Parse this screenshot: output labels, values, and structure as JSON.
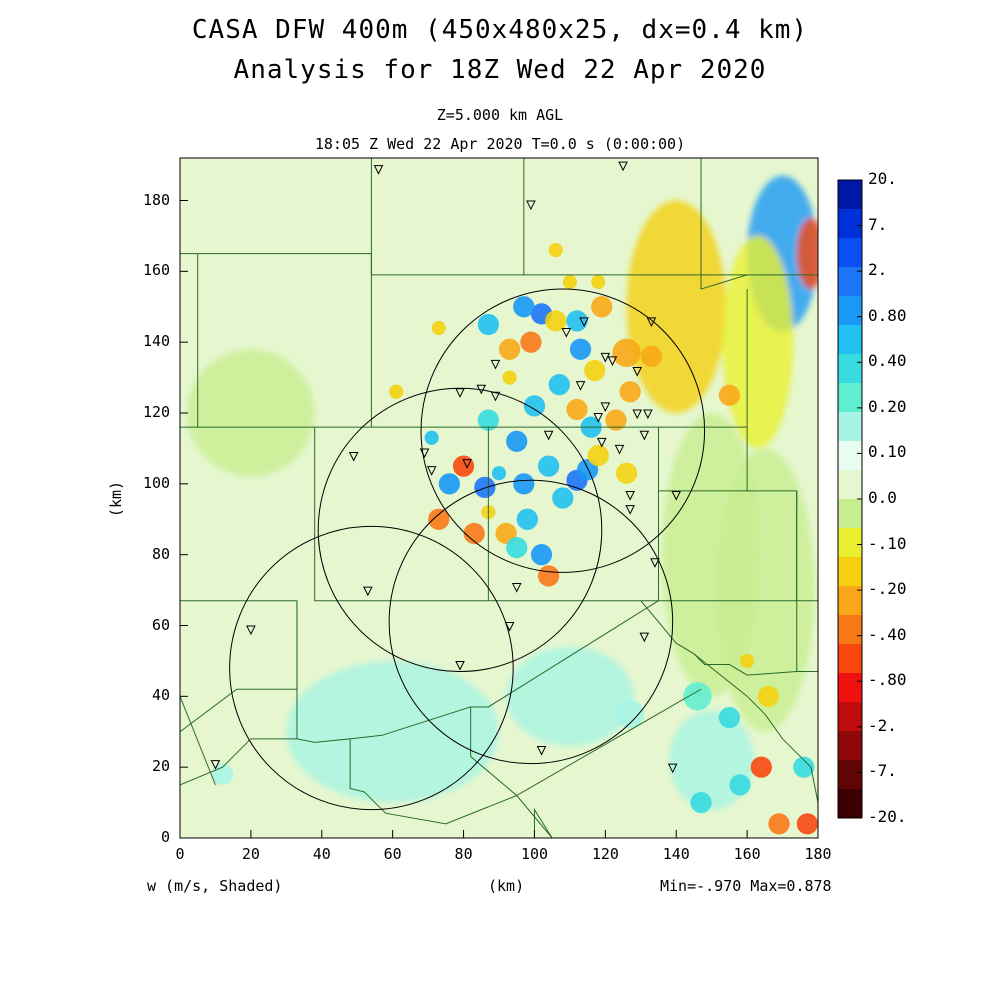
{
  "title_line1": "CASA DFW 400m (450x480x25, dx=0.4 km)",
  "title_line2": "Analysis for 18Z Wed 22 Apr 2020",
  "level_label": "Z=5.000 km AGL",
  "time_label": "18:05 Z Wed 22 Apr 2020    T=0.0 s (0:00:00)",
  "x_axis_label": "(km)",
  "y_axis_label": "(km)",
  "variable_label": "w (m/s, Shaded)",
  "minmax_label": "Min=-.970 Max=0.878",
  "x_ticks": [
    "0",
    "20",
    "40",
    "60",
    "80",
    "100",
    "120",
    "140",
    "160",
    "180"
  ],
  "y_ticks": [
    "0",
    "20",
    "40",
    "60",
    "80",
    "100",
    "120",
    "140",
    "160",
    "180"
  ],
  "colorbar_labels": [
    "20.",
    "7.",
    "2.",
    "0.80",
    "0.40",
    "0.20",
    "0.10",
    "0.0",
    "-.10",
    "-.20",
    "-.40",
    "-.80",
    "-2.",
    "-7.",
    "-20."
  ],
  "colorbar_colors": [
    "#0018a8",
    "#0030d8",
    "#0a50f0",
    "#1c74f8",
    "#1a98f5",
    "#20c0f0",
    "#38dce0",
    "#60eed0",
    "#a8f4e4",
    "#e8fcf0",
    "#e6f7d0",
    "#c8ee90",
    "#e8f030",
    "#f4d010",
    "#f8a818",
    "#f87818",
    "#f84810",
    "#f01010",
    "#c00c0c",
    "#900808",
    "#600404",
    "#3c0000"
  ],
  "radar_ranges_km": [
    {
      "x": 108,
      "y": 115
    },
    {
      "x": 79,
      "y": 87
    },
    {
      "x": 99,
      "y": 61
    },
    {
      "x": 54,
      "y": 48
    }
  ],
  "station_markers_km": [
    {
      "x": 56,
      "y": 189
    },
    {
      "x": 99,
      "y": 179
    },
    {
      "x": 125,
      "y": 190
    },
    {
      "x": 114,
      "y": 146
    },
    {
      "x": 133,
      "y": 146
    },
    {
      "x": 109,
      "y": 143
    },
    {
      "x": 89,
      "y": 134
    },
    {
      "x": 120,
      "y": 136
    },
    {
      "x": 122,
      "y": 135
    },
    {
      "x": 129,
      "y": 132
    },
    {
      "x": 79,
      "y": 126
    },
    {
      "x": 85,
      "y": 127
    },
    {
      "x": 89,
      "y": 125
    },
    {
      "x": 113,
      "y": 128
    },
    {
      "x": 120,
      "y": 122
    },
    {
      "x": 118,
      "y": 119
    },
    {
      "x": 129,
      "y": 120
    },
    {
      "x": 132,
      "y": 120
    },
    {
      "x": 104,
      "y": 114
    },
    {
      "x": 119,
      "y": 112
    },
    {
      "x": 131,
      "y": 114
    },
    {
      "x": 124,
      "y": 110
    },
    {
      "x": 49,
      "y": 108
    },
    {
      "x": 69,
      "y": 109
    },
    {
      "x": 71,
      "y": 104
    },
    {
      "x": 81,
      "y": 106
    },
    {
      "x": 127,
      "y": 97
    },
    {
      "x": 127,
      "y": 93
    },
    {
      "x": 140,
      "y": 97
    },
    {
      "x": 134,
      "y": 78
    },
    {
      "x": 53,
      "y": 70
    },
    {
      "x": 95,
      "y": 71
    },
    {
      "x": 93,
      "y": 60
    },
    {
      "x": 131,
      "y": 57
    },
    {
      "x": 79,
      "y": 49
    },
    {
      "x": 20,
      "y": 59
    },
    {
      "x": 102,
      "y": 25
    },
    {
      "x": 10,
      "y": 21
    },
    {
      "x": 139,
      "y": 20
    }
  ],
  "blobs_km": [
    {
      "x": 102,
      "y": 148,
      "r": 3,
      "c": "#1c74f8"
    },
    {
      "x": 97,
      "y": 150,
      "r": 3,
      "c": "#1a98f5"
    },
    {
      "x": 99,
      "y": 140,
      "r": 3,
      "c": "#f87818"
    },
    {
      "x": 112,
      "y": 146,
      "r": 3,
      "c": "#20c0f0"
    },
    {
      "x": 106,
      "y": 146,
      "r": 3,
      "c": "#f4d010"
    },
    {
      "x": 87,
      "y": 145,
      "r": 3,
      "c": "#20c0f0"
    },
    {
      "x": 93,
      "y": 138,
      "r": 3,
      "c": "#f8a818"
    },
    {
      "x": 119,
      "y": 150,
      "r": 3,
      "c": "#f8a818"
    },
    {
      "x": 113,
      "y": 138,
      "r": 3,
      "c": "#1a98f5"
    },
    {
      "x": 126,
      "y": 137,
      "r": 4,
      "c": "#f8a818"
    },
    {
      "x": 133,
      "y": 136,
      "r": 3,
      "c": "#f8a818"
    },
    {
      "x": 117,
      "y": 132,
      "r": 3,
      "c": "#f4d010"
    },
    {
      "x": 107,
      "y": 128,
      "r": 3,
      "c": "#20c0f0"
    },
    {
      "x": 93,
      "y": 130,
      "r": 2,
      "c": "#f4d010"
    },
    {
      "x": 112,
      "y": 121,
      "r": 3,
      "c": "#f8a818"
    },
    {
      "x": 100,
      "y": 122,
      "r": 3,
      "c": "#20c0f0"
    },
    {
      "x": 123,
      "y": 118,
      "r": 3,
      "c": "#f8a818"
    },
    {
      "x": 127,
      "y": 126,
      "r": 3,
      "c": "#f8a818"
    },
    {
      "x": 116,
      "y": 116,
      "r": 3,
      "c": "#20c0f0"
    },
    {
      "x": 95,
      "y": 112,
      "r": 3,
      "c": "#1a98f5"
    },
    {
      "x": 87,
      "y": 118,
      "r": 3,
      "c": "#38dce0"
    },
    {
      "x": 80,
      "y": 105,
      "r": 3,
      "c": "#f84810"
    },
    {
      "x": 76,
      "y": 100,
      "r": 3,
      "c": "#1a98f5"
    },
    {
      "x": 86,
      "y": 99,
      "r": 3,
      "c": "#1c74f8"
    },
    {
      "x": 90,
      "y": 103,
      "r": 2,
      "c": "#20c0f0"
    },
    {
      "x": 97,
      "y": 100,
      "r": 3,
      "c": "#1a98f5"
    },
    {
      "x": 104,
      "y": 105,
      "r": 3,
      "c": "#20c0f0"
    },
    {
      "x": 112,
      "y": 101,
      "r": 3,
      "c": "#1c74f8"
    },
    {
      "x": 115,
      "y": 104,
      "r": 3,
      "c": "#1a98f5"
    },
    {
      "x": 108,
      "y": 96,
      "r": 3,
      "c": "#20c0f0"
    },
    {
      "x": 118,
      "y": 108,
      "r": 3,
      "c": "#f4d010"
    },
    {
      "x": 73,
      "y": 90,
      "r": 3,
      "c": "#f87818"
    },
    {
      "x": 83,
      "y": 86,
      "r": 3,
      "c": "#f87818"
    },
    {
      "x": 92,
      "y": 86,
      "r": 3,
      "c": "#f8a818"
    },
    {
      "x": 98,
      "y": 90,
      "r": 3,
      "c": "#20c0f0"
    },
    {
      "x": 102,
      "y": 80,
      "r": 3,
      "c": "#1a98f5"
    },
    {
      "x": 104,
      "y": 74,
      "r": 3,
      "c": "#f87818"
    },
    {
      "x": 95,
      "y": 82,
      "r": 3,
      "c": "#38dce0"
    },
    {
      "x": 87,
      "y": 92,
      "r": 2,
      "c": "#f4d010"
    },
    {
      "x": 71,
      "y": 113,
      "r": 2,
      "c": "#20c0f0"
    },
    {
      "x": 126,
      "y": 103,
      "r": 3,
      "c": "#f4d010"
    },
    {
      "x": 106,
      "y": 166,
      "r": 2,
      "c": "#f4d010"
    },
    {
      "x": 110,
      "y": 157,
      "r": 2,
      "c": "#f4d010"
    },
    {
      "x": 118,
      "y": 157,
      "r": 2,
      "c": "#f4d010"
    },
    {
      "x": 73,
      "y": 144,
      "r": 2,
      "c": "#f4d010"
    },
    {
      "x": 61,
      "y": 126,
      "r": 2,
      "c": "#f4d010"
    },
    {
      "x": 164,
      "y": 20,
      "r": 3,
      "c": "#f84810"
    },
    {
      "x": 169,
      "y": 4,
      "r": 3,
      "c": "#f87818"
    },
    {
      "x": 177,
      "y": 4,
      "r": 3,
      "c": "#f84810"
    },
    {
      "x": 158,
      "y": 15,
      "r": 3,
      "c": "#38dce0"
    },
    {
      "x": 147,
      "y": 10,
      "r": 3,
      "c": "#38dce0"
    },
    {
      "x": 155,
      "y": 34,
      "r": 3,
      "c": "#38dce0"
    },
    {
      "x": 166,
      "y": 40,
      "r": 3,
      "c": "#f4d010"
    },
    {
      "x": 160,
      "y": 50,
      "r": 2,
      "c": "#f4d010"
    },
    {
      "x": 146,
      "y": 40,
      "r": 4,
      "c": "#60eed0"
    },
    {
      "x": 176,
      "y": 20,
      "r": 3,
      "c": "#38dce0"
    },
    {
      "x": 127,
      "y": 35,
      "r": 4,
      "c": "#a8f4e4"
    },
    {
      "x": 12,
      "y": 18,
      "r": 3,
      "c": "#a8f4e4"
    },
    {
      "x": 155,
      "y": 125,
      "r": 3,
      "c": "#f8a818"
    }
  ]
}
